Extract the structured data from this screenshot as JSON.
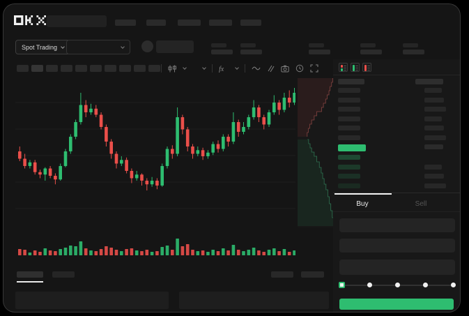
{
  "brand": {
    "logo": "OKX"
  },
  "colors": {
    "green": "#2ebd70",
    "red": "#ea4f4a"
  },
  "header": {
    "nav_items": 5
  },
  "market_bar": {
    "pair_selector_label": "Spot Trading",
    "stat_pairs": 5
  },
  "chart_toolbar": {
    "timeframe_buttons": 10,
    "icons": [
      "candle-type-icon",
      "chevron-down-icon",
      "layout-chevron-icon",
      "indicator-fx-icon",
      "indicator-chevron-icon",
      "line-tool-icon",
      "draw-tool-icon",
      "camera-icon",
      "history-icon",
      "fullscreen-icon"
    ]
  },
  "chart_data": {
    "type": "candlestick",
    "grid_lines_y": [
      35,
      73,
      111,
      149,
      187
    ],
    "price_scale": {
      "min": 30,
      "max": 88
    },
    "candles": [
      [
        56,
        53,
        52,
        58
      ],
      [
        53,
        50,
        49,
        55
      ],
      [
        50,
        51.5,
        49,
        52.5
      ],
      [
        51.5,
        47.5,
        46.5,
        52.5
      ],
      [
        47.5,
        46.5,
        45,
        48.5
      ],
      [
        46.5,
        49,
        44,
        49.5
      ],
      [
        49,
        46,
        45,
        50
      ],
      [
        46,
        44.5,
        42.5,
        47
      ],
      [
        44.5,
        50,
        44,
        51
      ],
      [
        50,
        56,
        49.5,
        57
      ],
      [
        56,
        62,
        55,
        63
      ],
      [
        62,
        68,
        61,
        69
      ],
      [
        68,
        75,
        67,
        80
      ],
      [
        75,
        72,
        70,
        77
      ],
      [
        72,
        73.5,
        71,
        75.5
      ],
      [
        73.5,
        71,
        70,
        75
      ],
      [
        71,
        66,
        65,
        72
      ],
      [
        66,
        60,
        58,
        67
      ],
      [
        60,
        55,
        53,
        61
      ],
      [
        55,
        51,
        49,
        56
      ],
      [
        51,
        52.5,
        50,
        54
      ],
      [
        52.5,
        48,
        47,
        53.5
      ],
      [
        48,
        45,
        43,
        49
      ],
      [
        45,
        46.5,
        44,
        48
      ],
      [
        46.5,
        44,
        42,
        47
      ],
      [
        44,
        42.5,
        40,
        45
      ],
      [
        42.5,
        44,
        41.5,
        45.5
      ],
      [
        44,
        42,
        40.5,
        45
      ],
      [
        42,
        50,
        41.5,
        51
      ],
      [
        50,
        57,
        49,
        58
      ],
      [
        57,
        55,
        53,
        58.5
      ],
      [
        55,
        70,
        54,
        74
      ],
      [
        70,
        65,
        63,
        71
      ],
      [
        65,
        58,
        56,
        66
      ],
      [
        58,
        55,
        53,
        59
      ],
      [
        55,
        56.5,
        54,
        58
      ],
      [
        56.5,
        54,
        52.5,
        57.5
      ],
      [
        54,
        55.5,
        53,
        56.5
      ],
      [
        55.5,
        59,
        54.5,
        60
      ],
      [
        59,
        57,
        55.5,
        60.5
      ],
      [
        57,
        62,
        56,
        63
      ],
      [
        62,
        60,
        58,
        63
      ],
      [
        60,
        68,
        59,
        72
      ],
      [
        68,
        64,
        62,
        69
      ],
      [
        64,
        66,
        63,
        68
      ],
      [
        66,
        70,
        65,
        71
      ],
      [
        70,
        74,
        69,
        77
      ],
      [
        74,
        70,
        68,
        75
      ],
      [
        70,
        67,
        65,
        71
      ],
      [
        67,
        72,
        66,
        73
      ],
      [
        72,
        76,
        71,
        79
      ],
      [
        76,
        73,
        71,
        77
      ],
      [
        73,
        78,
        72,
        80
      ],
      [
        78,
        76,
        74,
        81
      ],
      [
        76,
        80,
        75,
        82
      ]
    ],
    "volumes": [
      9,
      8,
      4,
      7,
      5,
      10,
      7,
      6,
      9,
      11,
      14,
      13,
      20,
      10,
      7,
      6,
      9,
      13,
      11,
      8,
      6,
      9,
      10,
      7,
      6,
      8,
      5,
      6,
      12,
      14,
      8,
      24,
      13,
      16,
      8,
      6,
      7,
      5,
      8,
      6,
      10,
      7,
      15,
      8,
      6,
      8,
      11,
      7,
      5,
      8,
      10,
      6,
      9,
      5,
      7
    ],
    "depth": {
      "asks": [
        [
          0,
          0.97
        ],
        [
          6,
          0.95
        ],
        [
          12,
          0.92
        ],
        [
          18,
          0.88
        ],
        [
          24,
          0.85
        ],
        [
          30,
          0.8
        ],
        [
          36,
          0.76
        ],
        [
          42,
          0.7
        ],
        [
          48,
          0.65
        ],
        [
          54,
          0.52
        ],
        [
          60,
          0.45
        ],
        [
          66,
          0.38
        ],
        [
          72,
          0.33
        ],
        [
          78,
          0.29
        ],
        [
          84,
          0.26
        ]
      ],
      "bids": [
        [
          88,
          0.27
        ],
        [
          94,
          0.3
        ],
        [
          100,
          0.34
        ],
        [
          106,
          0.38
        ],
        [
          112,
          0.45
        ],
        [
          120,
          0.52
        ],
        [
          128,
          0.59
        ],
        [
          136,
          0.64
        ],
        [
          144,
          0.68
        ],
        [
          152,
          0.72
        ],
        [
          160,
          0.77
        ],
        [
          170,
          0.82
        ],
        [
          180,
          0.86
        ],
        [
          190,
          0.9
        ],
        [
          200,
          0.94
        ],
        [
          212,
          0.97
        ]
      ]
    }
  },
  "orderbook": {
    "view_toggles": [
      "book-combined-icon",
      "book-buy-icon",
      "book-sell-icon"
    ],
    "ask_rows": 6,
    "bid_rows": 4,
    "amount_rows_below_price": 3
  },
  "trade_panel": {
    "tabs": [
      {
        "label": "Buy",
        "active": true
      },
      {
        "label": "Sell",
        "active": false
      }
    ],
    "input_fields": 3,
    "slider": {
      "stops": 5,
      "active_stop": 0
    }
  },
  "bottom_bar": {
    "tabs": 2,
    "active_tab": 0,
    "right_buttons": 2,
    "panels": 2
  }
}
